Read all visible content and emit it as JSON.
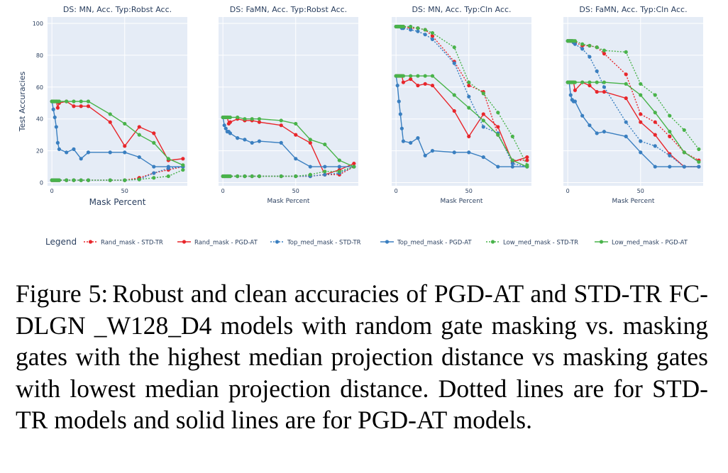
{
  "figure": {
    "ylabel": "Test Accuracies",
    "legend_title": "Legend",
    "series_styles": [
      {
        "name": "Rand_mask - STD-TR",
        "color": "#e8262b",
        "dash": true
      },
      {
        "name": "Rand_mask - PGD-AT",
        "color": "#e8262b",
        "dash": false
      },
      {
        "name": "Top_med_mask - STD-TR",
        "color": "#3a7fc0",
        "dash": true
      },
      {
        "name": "Top_med_mask - PGD-AT",
        "color": "#3a7fc0",
        "dash": false
      },
      {
        "name": "Low_med_mask - STD-TR",
        "color": "#49b34a",
        "dash": true
      },
      {
        "name": "Low_med_mask - PGD-AT",
        "color": "#49b34a",
        "dash": false
      }
    ]
  },
  "chart_data": [
    {
      "type": "line",
      "title": "DS: MN, Acc. Typ:Robst Acc.",
      "xlabel": "Mask Percent",
      "ylabel": "Test Accuracies",
      "xlim": [
        -3,
        93
      ],
      "ylim": [
        -2,
        104
      ],
      "xticks": [
        0,
        50
      ],
      "yticks": [
        0,
        20,
        40,
        60,
        80,
        100
      ],
      "series": [
        {
          "name": "Rand_mask - STD-TR",
          "x": [
            0,
            1,
            2,
            3,
            4,
            5,
            10,
            15,
            20,
            25,
            40,
            50,
            60,
            70,
            80,
            90
          ],
          "y": [
            1.5,
            1.5,
            1.5,
            1.5,
            1.5,
            1.5,
            1.5,
            1.5,
            1.5,
            1.5,
            1.5,
            1.5,
            3,
            6,
            8,
            10
          ]
        },
        {
          "name": "Rand_mask - PGD-AT",
          "x": [
            0,
            1,
            2,
            3,
            4,
            5,
            10,
            15,
            20,
            25,
            40,
            50,
            60,
            70,
            80,
            90
          ],
          "y": [
            51,
            51,
            51,
            51,
            47,
            50,
            51,
            48,
            48,
            48,
            38,
            23,
            35,
            31,
            14,
            15
          ]
        },
        {
          "name": "Top_med_mask - STD-TR",
          "x": [
            0,
            1,
            2,
            3,
            4,
            5,
            10,
            15,
            20,
            25,
            40,
            50,
            60,
            70,
            80,
            90
          ],
          "y": [
            1.5,
            1.5,
            1.5,
            1.5,
            1.5,
            1.5,
            1.5,
            1.5,
            1.5,
            1.5,
            1.5,
            1.5,
            2,
            6,
            9,
            10
          ]
        },
        {
          "name": "Top_med_mask - PGD-AT",
          "x": [
            0,
            1,
            2,
            3,
            4,
            5,
            10,
            15,
            20,
            25,
            40,
            50,
            60,
            70,
            80,
            90
          ],
          "y": [
            51,
            46,
            41,
            35,
            25,
            21,
            19,
            21,
            15,
            19,
            19,
            19,
            16,
            10,
            10,
            10
          ]
        },
        {
          "name": "Low_med_mask - STD-TR",
          "x": [
            0,
            1,
            2,
            3,
            4,
            5,
            10,
            15,
            20,
            25,
            40,
            50,
            60,
            70,
            80,
            90
          ],
          "y": [
            1.5,
            1.5,
            1.5,
            1.5,
            1.5,
            1.5,
            1.5,
            1.5,
            1.5,
            1.5,
            1.5,
            1.5,
            2,
            3,
            4,
            8
          ]
        },
        {
          "name": "Low_med_mask - PGD-AT",
          "x": [
            0,
            1,
            2,
            3,
            4,
            5,
            10,
            15,
            20,
            25,
            40,
            50,
            60,
            70,
            80,
            90
          ],
          "y": [
            51,
            51,
            51,
            51,
            51,
            51,
            51,
            51,
            51,
            51,
            43,
            37,
            30,
            25,
            15,
            11
          ]
        }
      ]
    },
    {
      "type": "line",
      "title": "DS: FaMN, Acc. Typ:Robst Acc.",
      "xlabel": "Mask Percent",
      "ylabel": "",
      "xlim": [
        -3,
        93
      ],
      "ylim": [
        -2,
        104
      ],
      "xticks": [
        0,
        50
      ],
      "yticks": [],
      "series": [
        {
          "name": "Rand_mask - STD-TR",
          "x": [
            0,
            1,
            2,
            3,
            4,
            5,
            10,
            15,
            20,
            25,
            40,
            50,
            60,
            70,
            80,
            90
          ],
          "y": [
            4,
            4,
            4,
            4,
            4,
            4,
            4,
            4,
            4,
            4,
            4,
            4,
            4,
            5,
            5,
            10
          ]
        },
        {
          "name": "Rand_mask - PGD-AT",
          "x": [
            0,
            1,
            2,
            3,
            4,
            5,
            10,
            15,
            20,
            25,
            40,
            50,
            60,
            70,
            80,
            90
          ],
          "y": [
            41,
            41,
            41,
            41,
            37,
            38,
            40,
            39,
            39,
            38,
            36,
            30,
            25,
            5,
            8,
            12
          ]
        },
        {
          "name": "Top_med_mask - STD-TR",
          "x": [
            0,
            1,
            2,
            3,
            4,
            5,
            10,
            15,
            20,
            25,
            40,
            50,
            60,
            70,
            80,
            90
          ],
          "y": [
            4,
            4,
            4,
            4,
            4,
            4,
            4,
            4,
            4,
            4,
            4,
            4,
            4,
            5,
            6,
            10
          ]
        },
        {
          "name": "Top_med_mask - PGD-AT",
          "x": [
            0,
            1,
            2,
            3,
            4,
            5,
            10,
            15,
            20,
            25,
            40,
            50,
            60,
            70,
            80,
            90
          ],
          "y": [
            41,
            36,
            34,
            32,
            32,
            31,
            28,
            27,
            25,
            26,
            25,
            15,
            10,
            10,
            10,
            10
          ]
        },
        {
          "name": "Low_med_mask - STD-TR",
          "x": [
            0,
            1,
            2,
            3,
            4,
            5,
            10,
            15,
            20,
            25,
            40,
            50,
            60,
            70,
            80,
            90
          ],
          "y": [
            4,
            4,
            4,
            4,
            4,
            4,
            4,
            4,
            4,
            4,
            4,
            4,
            5,
            7,
            7,
            10
          ]
        },
        {
          "name": "Low_med_mask - PGD-AT",
          "x": [
            0,
            1,
            2,
            3,
            4,
            5,
            10,
            15,
            20,
            25,
            40,
            50,
            60,
            70,
            80,
            90
          ],
          "y": [
            41,
            41,
            41,
            41,
            41,
            41,
            41,
            40,
            40,
            40,
            39,
            37,
            27,
            24,
            14,
            10
          ]
        }
      ]
    },
    {
      "type": "line",
      "title": "DS: MN, Acc. Typ:Cln Acc.",
      "xlabel": "Mask Percent",
      "ylabel": "",
      "xlim": [
        -3,
        93
      ],
      "ylim": [
        -2,
        104
      ],
      "xticks": [
        0,
        50
      ],
      "yticks": [],
      "series": [
        {
          "name": "Rand_mask - STD-TR",
          "x": [
            0,
            1,
            2,
            3,
            4,
            5,
            10,
            15,
            20,
            25,
            40,
            50,
            60,
            70,
            80,
            90
          ],
          "y": [
            98,
            98,
            98,
            98,
            98,
            98,
            97,
            97,
            96,
            92,
            76,
            61,
            57,
            30,
            14,
            14
          ]
        },
        {
          "name": "Rand_mask - PGD-AT",
          "x": [
            0,
            1,
            2,
            3,
            4,
            5,
            10,
            15,
            20,
            25,
            40,
            50,
            60,
            70,
            80,
            90
          ],
          "y": [
            67,
            67,
            67,
            67,
            67,
            63,
            65,
            61,
            62,
            61,
            45,
            29,
            43,
            35,
            13,
            16
          ]
        },
        {
          "name": "Top_med_mask - STD-TR",
          "x": [
            0,
            1,
            2,
            3,
            4,
            5,
            10,
            15,
            20,
            25,
            40,
            50,
            60,
            70,
            80,
            90
          ],
          "y": [
            98,
            98,
            98,
            98,
            97,
            97,
            96,
            95,
            93,
            90,
            75,
            54,
            35,
            31,
            12,
            10
          ]
        },
        {
          "name": "Top_med_mask - PGD-AT",
          "x": [
            0,
            1,
            2,
            3,
            4,
            5,
            10,
            15,
            20,
            25,
            40,
            50,
            60,
            70,
            80,
            90
          ],
          "y": [
            67,
            61,
            51,
            43,
            34,
            26,
            25,
            28,
            17,
            20,
            19,
            19,
            16,
            10,
            10,
            10
          ]
        },
        {
          "name": "Low_med_mask - STD-TR",
          "x": [
            0,
            1,
            2,
            3,
            4,
            5,
            10,
            15,
            20,
            25,
            40,
            50,
            60,
            70,
            80,
            90
          ],
          "y": [
            98,
            98,
            98,
            98,
            98,
            98,
            98,
            97,
            96,
            94,
            85,
            63,
            56,
            44,
            29,
            11
          ]
        },
        {
          "name": "Low_med_mask - PGD-AT",
          "x": [
            0,
            1,
            2,
            3,
            4,
            5,
            10,
            15,
            20,
            25,
            40,
            50,
            60,
            70,
            80,
            90
          ],
          "y": [
            67,
            67,
            67,
            67,
            67,
            67,
            67,
            67,
            67,
            67,
            55,
            47,
            39,
            30,
            14,
            10
          ]
        }
      ]
    },
    {
      "type": "line",
      "title": "DS: FaMN, Acc. Typ:Cln Acc.",
      "xlabel": "Mask Percent",
      "ylabel": "",
      "xlim": [
        -3,
        93
      ],
      "ylim": [
        -2,
        104
      ],
      "xticks": [
        0,
        50
      ],
      "yticks": [],
      "series": [
        {
          "name": "Rand_mask - STD-TR",
          "x": [
            0,
            1,
            2,
            3,
            4,
            5,
            10,
            15,
            20,
            25,
            40,
            50,
            60,
            70,
            80,
            90
          ],
          "y": [
            89,
            89,
            89,
            89,
            88,
            88,
            86,
            86,
            85,
            81,
            68,
            43,
            38,
            29,
            19,
            14
          ]
        },
        {
          "name": "Rand_mask - PGD-AT",
          "x": [
            0,
            1,
            2,
            3,
            4,
            5,
            10,
            15,
            20,
            25,
            40,
            50,
            60,
            70,
            80,
            90
          ],
          "y": [
            63,
            63,
            63,
            63,
            63,
            58,
            63,
            61,
            57,
            57,
            53,
            38,
            30,
            18,
            10,
            10
          ]
        },
        {
          "name": "Top_med_mask - STD-TR",
          "x": [
            0,
            1,
            2,
            3,
            4,
            5,
            10,
            15,
            20,
            25,
            40,
            50,
            60,
            70,
            80,
            90
          ],
          "y": [
            89,
            89,
            89,
            89,
            88,
            87,
            84,
            79,
            70,
            60,
            38,
            26,
            23,
            17,
            10,
            10
          ]
        },
        {
          "name": "Top_med_mask - PGD-AT",
          "x": [
            0,
            1,
            2,
            3,
            4,
            5,
            10,
            15,
            20,
            25,
            40,
            50,
            60,
            70,
            80,
            90
          ],
          "y": [
            63,
            63,
            55,
            52,
            51,
            51,
            42,
            36,
            31,
            32,
            29,
            19,
            10,
            10,
            10,
            10
          ]
        },
        {
          "name": "Low_med_mask - STD-TR",
          "x": [
            0,
            1,
            2,
            3,
            4,
            5,
            10,
            15,
            20,
            25,
            40,
            50,
            60,
            70,
            80,
            90
          ],
          "y": [
            89,
            89,
            89,
            89,
            89,
            89,
            87,
            86,
            85,
            83,
            82,
            62,
            55,
            42,
            33,
            21
          ]
        },
        {
          "name": "Low_med_mask - PGD-AT",
          "x": [
            0,
            1,
            2,
            3,
            4,
            5,
            10,
            15,
            20,
            25,
            40,
            50,
            60,
            70,
            80,
            90
          ],
          "y": [
            63,
            63,
            63,
            63,
            63,
            63,
            63,
            63,
            63,
            63,
            62,
            55,
            44,
            32,
            19,
            13
          ]
        }
      ]
    }
  ],
  "caption": {
    "label": "Figure 5:",
    "text": "Robust and clean accuracies of PGD-AT and STD-TR FC-DLGN _W128_D4 models with random gate masking vs. masking gates with the highest median projection distance vs masking gates with lowest median projection distance. Dotted lines are for STD-TR models and solid lines are for PGD-AT models."
  }
}
